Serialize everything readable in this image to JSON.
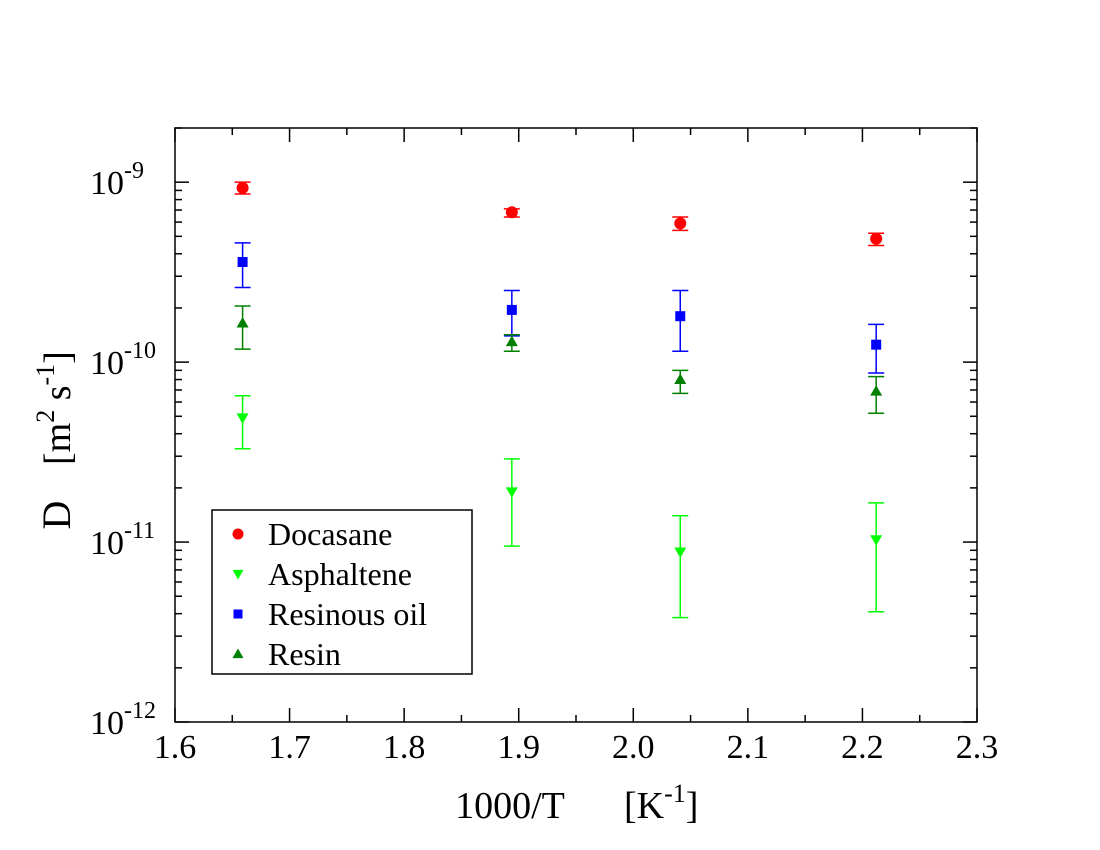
{
  "chart_data": {
    "type": "scatter",
    "title": "",
    "xlabel": "1000/T",
    "xlabel_units": "[K",
    "xlabel_units_exp": "-1",
    "xlabel_units_close": "]",
    "ylabel": "D",
    "ylabel_units_open": "[m",
    "ylabel_exp1": "2",
    "ylabel_mid": " s",
    "ylabel_exp2": "-1",
    "ylabel_close": "]",
    "xlim": [
      1.6,
      2.3
    ],
    "ylim": [
      1e-12,
      2e-09
    ],
    "yscale": "log",
    "x_ticks": [
      "1.6",
      "1.7",
      "1.8",
      "1.9",
      "2.0",
      "2.1",
      "2.2",
      "2.3"
    ],
    "y_ticks": [
      {
        "base": "10",
        "exp": "-12"
      },
      {
        "base": "10",
        "exp": "-11"
      },
      {
        "base": "10",
        "exp": "-10"
      },
      {
        "base": "10",
        "exp": "-9"
      }
    ],
    "legend_position": "bottom-left",
    "series": [
      {
        "name": "Docasane",
        "marker": "circle",
        "color": "#ff0000",
        "points": [
          {
            "x": 1.659,
            "y": 9.3e-10,
            "lo": 8.6e-10,
            "hi": 1e-09
          },
          {
            "x": 1.894,
            "y": 6.8e-10,
            "lo": 6.4e-10,
            "hi": 7.1e-10
          },
          {
            "x": 2.041,
            "y": 5.9e-10,
            "lo": 5.4e-10,
            "hi": 6.4e-10
          },
          {
            "x": 2.212,
            "y": 4.85e-10,
            "lo": 4.45e-10,
            "hi": 5.2e-10
          }
        ]
      },
      {
        "name": "Asphaltene",
        "marker": "triangle-down",
        "color": "#00ff00",
        "points": [
          {
            "x": 1.659,
            "y": 4.9e-11,
            "lo": 3.3e-11,
            "hi": 6.5e-11
          },
          {
            "x": 1.894,
            "y": 1.9e-11,
            "lo": 9.5e-12,
            "hi": 2.9e-11
          },
          {
            "x": 2.041,
            "y": 8.8e-12,
            "lo": 3.8e-12,
            "hi": 1.4e-11
          },
          {
            "x": 2.212,
            "y": 1.03e-11,
            "lo": 4.1e-12,
            "hi": 1.65e-11
          }
        ]
      },
      {
        "name": "Resinous oil",
        "marker": "square",
        "color": "#0000ff",
        "points": [
          {
            "x": 1.659,
            "y": 3.6e-10,
            "lo": 2.6e-10,
            "hi": 4.6e-10
          },
          {
            "x": 1.894,
            "y": 1.95e-10,
            "lo": 1.4e-10,
            "hi": 2.5e-10
          },
          {
            "x": 2.041,
            "y": 1.8e-10,
            "lo": 1.15e-10,
            "hi": 2.5e-10
          },
          {
            "x": 2.212,
            "y": 1.25e-10,
            "lo": 8.7e-11,
            "hi": 1.62e-10
          }
        ]
      },
      {
        "name": "Resin",
        "marker": "triangle-up",
        "color": "#008000",
        "points": [
          {
            "x": 1.659,
            "y": 1.65e-10,
            "lo": 1.18e-10,
            "hi": 2.05e-10
          },
          {
            "x": 1.894,
            "y": 1.3e-10,
            "lo": 1.15e-10,
            "hi": 1.42e-10
          },
          {
            "x": 2.041,
            "y": 8e-11,
            "lo": 6.7e-11,
            "hi": 9e-11
          },
          {
            "x": 2.212,
            "y": 6.9e-11,
            "lo": 5.2e-11,
            "hi": 8.3e-11
          }
        ]
      }
    ]
  }
}
